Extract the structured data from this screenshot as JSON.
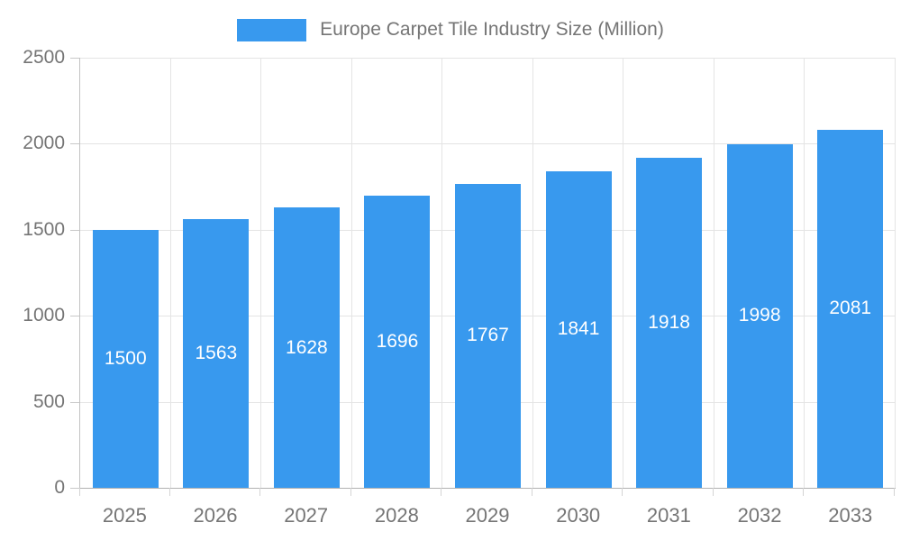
{
  "legend": {
    "label": "Europe Carpet Tile Industry Size (Million)"
  },
  "chart_data": {
    "type": "bar",
    "title": "Europe Carpet Tile Industry Size (Million)",
    "series_name": "Europe Carpet Tile Industry Size (Million)",
    "categories": [
      "2025",
      "2026",
      "2027",
      "2028",
      "2029",
      "2030",
      "2031",
      "2032",
      "2033"
    ],
    "values": [
      1500,
      1563,
      1628,
      1696,
      1767,
      1841,
      1918,
      1998,
      2081
    ],
    "xlabel": "",
    "ylabel": "",
    "ylim": [
      0,
      2500
    ],
    "yticks": [
      0,
      500,
      1000,
      1500,
      2000,
      2500
    ],
    "grid": true,
    "legend_position": "top",
    "colors": {
      "bar": "#3899EE",
      "bar_label_text": "#ffffff",
      "axis_text": "#757575",
      "gridline": "#e4e4e4",
      "axis_line": "#b2b2b2"
    }
  }
}
